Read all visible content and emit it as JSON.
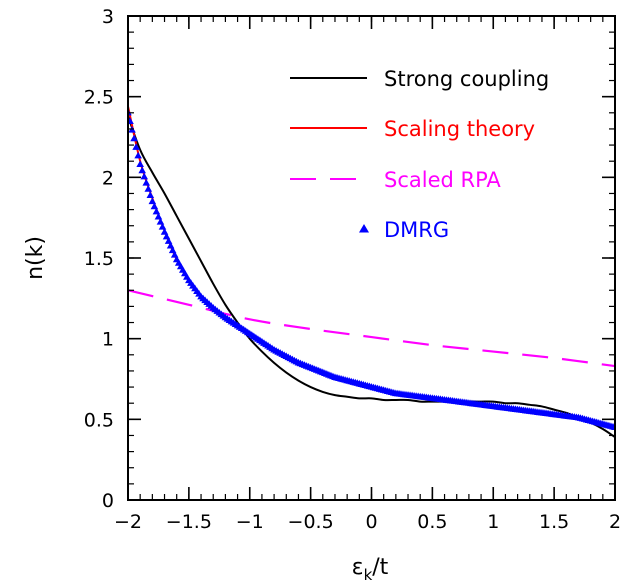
{
  "chart_data": {
    "type": "line",
    "xlabel_main": "ε",
    "xlabel_sub": "k",
    "xlabel_tail": "/t",
    "ylabel": "n(k)",
    "xlim": [
      -2,
      2
    ],
    "ylim": [
      0,
      3
    ],
    "x_ticks": [
      -2,
      -1.5,
      -1,
      -0.5,
      0,
      0.5,
      1,
      1.5,
      2
    ],
    "x_tick_labels": [
      "−2",
      "−1.5",
      "−1",
      "−0.5",
      "0",
      "0.5",
      "1",
      "1.5",
      "2"
    ],
    "y_ticks": [
      0,
      0.5,
      1,
      1.5,
      2,
      2.5,
      3
    ],
    "y_tick_labels": [
      "0",
      "0.5",
      "1",
      "1.5",
      "2",
      "2.5",
      "3"
    ],
    "legend_position": "top-right",
    "series": [
      {
        "name": "Strong coupling",
        "color": "#000000",
        "style": "solid",
        "x": [
          -2.0,
          -1.9,
          -1.8,
          -1.7,
          -1.6,
          -1.5,
          -1.4,
          -1.3,
          -1.2,
          -1.1,
          -1.0,
          -0.9,
          -0.8,
          -0.7,
          -0.6,
          -0.5,
          -0.4,
          -0.3,
          -0.2,
          -0.1,
          0.0,
          0.1,
          0.2,
          0.3,
          0.4,
          0.5,
          0.6,
          0.7,
          0.8,
          0.9,
          1.0,
          1.1,
          1.2,
          1.3,
          1.4,
          1.5,
          1.6,
          1.7,
          1.8,
          1.9,
          2.0
        ],
        "y": [
          2.38,
          2.17,
          2.03,
          1.9,
          1.76,
          1.62,
          1.48,
          1.34,
          1.21,
          1.1,
          1.0,
          0.92,
          0.85,
          0.79,
          0.74,
          0.7,
          0.67,
          0.65,
          0.64,
          0.63,
          0.63,
          0.62,
          0.62,
          0.62,
          0.61,
          0.61,
          0.61,
          0.61,
          0.61,
          0.61,
          0.61,
          0.6,
          0.6,
          0.59,
          0.58,
          0.56,
          0.54,
          0.51,
          0.48,
          0.44,
          0.39
        ]
      },
      {
        "name": "Scaling theory",
        "color": "#ff0000",
        "style": "solid",
        "x": [
          -2.0,
          -1.9,
          -1.8,
          -1.7,
          -1.6,
          -1.5,
          -1.4,
          -1.3,
          -1.2,
          -1.1,
          -1.0,
          -0.9,
          -0.8,
          -0.7,
          -0.6,
          -0.5,
          -0.4,
          -0.3,
          -0.2,
          -0.1,
          0.0,
          0.1,
          0.2,
          0.3,
          0.4,
          0.5,
          0.6,
          0.7,
          0.8,
          0.9,
          1.0,
          1.1,
          1.2,
          1.3,
          1.4,
          1.5,
          1.6,
          1.7,
          1.8,
          1.9,
          2.0
        ],
        "y": [
          2.44,
          2.1,
          1.87,
          1.67,
          1.49,
          1.36,
          1.26,
          1.19,
          1.13,
          1.07,
          1.02,
          0.97,
          0.92,
          0.88,
          0.84,
          0.81,
          0.78,
          0.75,
          0.73,
          0.71,
          0.69,
          0.67,
          0.66,
          0.64,
          0.63,
          0.62,
          0.61,
          0.6,
          0.59,
          0.58,
          0.57,
          0.56,
          0.55,
          0.54,
          0.53,
          0.52,
          0.51,
          0.5,
          0.49,
          0.47,
          0.45
        ]
      },
      {
        "name": "Scaled RPA",
        "color": "#ff00ff",
        "style": "dashed",
        "x": [
          -2.0,
          -1.5,
          -1.0,
          -0.5,
          0.0,
          0.5,
          1.0,
          1.5,
          2.0
        ],
        "y": [
          1.3,
          1.21,
          1.12,
          1.06,
          1.01,
          0.96,
          0.92,
          0.88,
          0.83
        ]
      },
      {
        "name": "DMRG",
        "color": "#0000ff",
        "style": "markers",
        "x": [
          -2.0,
          -1.9,
          -1.8,
          -1.7,
          -1.6,
          -1.5,
          -1.4,
          -1.3,
          -1.2,
          -1.1,
          -1.0,
          -0.9,
          -0.8,
          -0.7,
          -0.6,
          -0.5,
          -0.4,
          -0.3,
          -0.2,
          -0.1,
          0.0,
          0.1,
          0.2,
          0.3,
          0.4,
          0.5,
          0.6,
          0.7,
          0.8,
          0.9,
          1.0,
          1.1,
          1.2,
          1.3,
          1.4,
          1.5,
          1.6,
          1.7,
          1.8,
          1.9,
          2.0
        ],
        "y": [
          2.4,
          2.08,
          1.85,
          1.66,
          1.49,
          1.36,
          1.26,
          1.19,
          1.13,
          1.08,
          1.03,
          0.98,
          0.93,
          0.89,
          0.85,
          0.82,
          0.79,
          0.76,
          0.74,
          0.72,
          0.7,
          0.68,
          0.66,
          0.65,
          0.64,
          0.63,
          0.62,
          0.61,
          0.6,
          0.59,
          0.58,
          0.57,
          0.56,
          0.55,
          0.54,
          0.53,
          0.52,
          0.51,
          0.49,
          0.47,
          0.45
        ]
      }
    ]
  }
}
